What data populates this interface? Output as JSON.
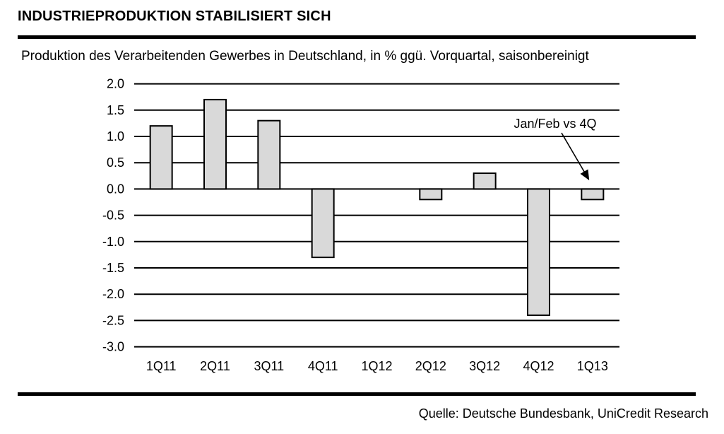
{
  "header": {
    "title": "INDUSTRIEPRODUKTION STABILISIERT SICH",
    "subtitle": "Produktion des Verarbeitenden Gewerbes in Deutschland, in % ggü. Vorquartal, saisonbereinigt"
  },
  "chart_data": {
    "type": "bar",
    "categories": [
      "1Q11",
      "2Q11",
      "3Q11",
      "4Q11",
      "1Q12",
      "2Q12",
      "3Q12",
      "4Q12",
      "1Q13"
    ],
    "values": [
      1.2,
      1.7,
      1.3,
      -1.3,
      0.0,
      -0.2,
      0.3,
      -2.4,
      -0.2
    ],
    "title": "",
    "xlabel": "",
    "ylabel": "",
    "ylim": [
      -3.0,
      2.0
    ],
    "ytick_step": 0.5,
    "ytick_labels": [
      "2.0",
      "1.5",
      "1.0",
      "0.5",
      "0.0",
      "-0.5",
      "-1.0",
      "-1.5",
      "-2.0",
      "-2.5",
      "-3.0"
    ],
    "grid": true,
    "legend": "none",
    "bar_fill": "#d9d9d9",
    "bar_stroke": "#000000",
    "grid_color": "#000000",
    "annotation": {
      "text": "Jan/Feb vs 4Q",
      "target_category": "1Q13"
    }
  },
  "footer": {
    "source": "Quelle: Deutsche Bundesbank, UniCredit Research"
  }
}
